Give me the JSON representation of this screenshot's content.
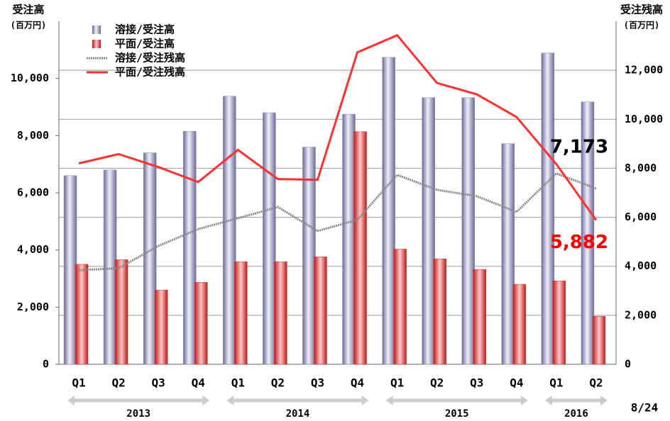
{
  "chart_data": {
    "type": "bar-line",
    "y_title": "受注高",
    "y_unit": "(百万円)",
    "y2_title": "受注残高",
    "y2_unit": "(百万円)",
    "date_note": "8/24",
    "categories": [
      "Q1",
      "Q2",
      "Q3",
      "Q4",
      "Q1",
      "Q2",
      "Q3",
      "Q4",
      "Q1",
      "Q2",
      "Q3",
      "Q4",
      "Q1",
      "Q2"
    ],
    "groups": [
      {
        "label": "2013",
        "count": 4
      },
      {
        "label": "2014",
        "count": 4
      },
      {
        "label": "2015",
        "count": 4
      },
      {
        "label": "2016",
        "count": 2
      }
    ],
    "series": [
      {
        "name": "溶接/受注高",
        "kind": "bar",
        "color": "#8e8eb8",
        "values": [
          6600,
          6800,
          7400,
          8150,
          9380,
          8800,
          7600,
          8750,
          10740,
          9330,
          9330,
          7720,
          10890,
          9180
        ]
      },
      {
        "name": "平面/受注高",
        "kind": "bar",
        "color": "#d23c3c",
        "values": [
          3500,
          3660,
          2600,
          2870,
          3590,
          3590,
          3760,
          8140,
          4030,
          3690,
          3320,
          2800,
          2920,
          1680
        ]
      },
      {
        "name": "溶接/受注残高",
        "kind": "line",
        "axis": "y2",
        "color": "#888888",
        "label_color": "#000000",
        "values": [
          3840,
          3920,
          4830,
          5520,
          5960,
          6420,
          5440,
          5900,
          7730,
          7120,
          6860,
          6220,
          7790,
          7173
        ],
        "value_labels": [
          null,
          null,
          null,
          null,
          null,
          null,
          null,
          null,
          null,
          null,
          null,
          null,
          null,
          "7,173"
        ]
      },
      {
        "name": "平面/受注残高",
        "kind": "line",
        "axis": "y2",
        "color": "#ff3030",
        "label_color": "#ff0000",
        "values": [
          8200,
          8580,
          8050,
          7440,
          8750,
          7560,
          7530,
          12730,
          13430,
          11480,
          11020,
          10090,
          8170,
          5882
        ],
        "value_labels": [
          null,
          null,
          null,
          null,
          null,
          null,
          null,
          null,
          null,
          null,
          null,
          null,
          null,
          "5,882"
        ]
      }
    ],
    "ylim": [
      0,
      12000
    ],
    "yticks": [
      0,
      {
        "value": 2000,
        "label": "2,000"
      },
      {
        "value": 4000,
        "label": "4,000"
      },
      {
        "value": 6000,
        "label": "6,000"
      },
      {
        "value": 8000,
        "label": "8,000"
      },
      {
        "value": 10000,
        "label": "10,000"
      }
    ],
    "y2lim": [
      0,
      14000
    ],
    "y2ticks": [
      0,
      {
        "value": 2000,
        "label": "2,000"
      },
      {
        "value": 4000,
        "label": "4,000"
      },
      {
        "value": 6000,
        "label": "6,000"
      },
      {
        "value": 8000,
        "label": "8,000"
      },
      {
        "value": 10000,
        "label": "10,000"
      },
      {
        "value": 12000,
        "label": "12,000"
      }
    ],
    "grid": "y2",
    "legend": "upper left"
  }
}
